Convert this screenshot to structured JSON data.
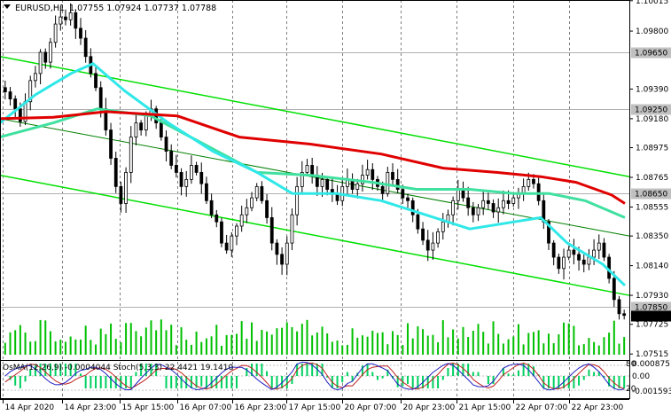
{
  "header": {
    "symbol": "EURUSD,H1",
    "ohlc": "1.07755 1.07924 1.07737 1.07788"
  },
  "oscillator_header": "OsMA(12,26,9) -0.0004044  Stoch(5,3,3) 22.4421 19.1410",
  "colors": {
    "bull_candle": "#000000",
    "bear_candle": "#000000",
    "channel": "#00e000",
    "ema_red": "#e00000",
    "ema_cyan": "#30e8e8",
    "ema_green": "#40e0a0",
    "volume": "#00c000",
    "osma": "#00d060",
    "stoch_main": "#2020c0",
    "stoch_signal": "#c02020",
    "price_tag": "#c0c0c0",
    "current_tag": "#000000"
  },
  "chart_data": {
    "type": "candlestick",
    "ylim": [
      1.0751,
      1.1002
    ],
    "y_ticks": [
      "1.10015",
      "1.09800",
      "1.09390",
      "1.09180",
      "1.08975",
      "1.08765",
      "1.08555",
      "1.08350",
      "1.08140",
      "1.07930",
      "1.07725",
      "1.07515"
    ],
    "level_tags": [
      "1.09650",
      "1.09250",
      "1.08650",
      "1.07850"
    ],
    "current_price": "1.07788",
    "x_labels": [
      "14 Apr 2020",
      "14 Apr 23:00",
      "15 Apr 15:00",
      "16 Apr 07:00",
      "16 Apr 23:00",
      "17 Apr 15:00",
      "20 Apr 07:00",
      "20 Apr 23:00",
      "21 Apr 15:00",
      "22 Apr 07:00",
      "22 Apr 23:00"
    ],
    "osc_ticks": [
      "0.0008751",
      "0.00",
      "-0.001593"
    ],
    "stoch_levels": [
      "80",
      "20"
    ],
    "channel": {
      "upper": [
        [
          0,
          1.0962
        ],
        [
          710,
          1.0877
        ]
      ],
      "middle": [
        [
          0,
          1.0918
        ],
        [
          710,
          1.0835
        ]
      ],
      "lower": [
        [
          0,
          1.0878
        ],
        [
          710,
          1.0793
        ]
      ]
    },
    "candles_close": [
      1.0937,
      1.0932,
      1.0925,
      1.0916,
      1.093,
      1.0945,
      1.095,
      1.0965,
      1.0958,
      1.0972,
      1.0985,
      1.099,
      1.0988,
      1.0993,
      1.0982,
      1.0975,
      1.0962,
      1.095,
      1.094,
      1.0925,
      1.091,
      1.089,
      1.087,
      1.0858,
      1.088,
      1.0905,
      1.0915,
      1.091,
      1.092,
      1.0925,
      1.0915,
      1.0905,
      1.0895,
      1.0885,
      1.088,
      1.087,
      1.0875,
      1.0885,
      1.088,
      1.0872,
      1.086,
      1.085,
      1.0845,
      1.083,
      1.0825,
      1.0835,
      1.0842,
      1.085,
      1.0855,
      1.0862,
      1.087,
      1.086,
      1.0848,
      1.083,
      1.0822,
      1.0815,
      1.083,
      1.085,
      1.087,
      1.088,
      1.0885,
      1.0878,
      1.087,
      1.0875,
      1.0868,
      1.0865,
      1.086,
      1.087,
      1.0875,
      1.0868,
      1.0872,
      1.0878,
      1.0882,
      1.0875,
      1.087,
      1.0865,
      1.088,
      1.0875,
      1.0868,
      1.0862,
      1.086,
      1.085,
      1.084,
      1.0832,
      1.0825,
      1.083,
      1.0838,
      1.0845,
      1.085,
      1.086,
      1.0868,
      1.0862,
      1.0855,
      1.085,
      1.0855,
      1.086,
      1.0858,
      1.0852,
      1.0855,
      1.086,
      1.0858,
      1.0862,
      1.0865,
      1.087,
      1.0875,
      1.0872,
      1.086,
      1.0845,
      1.083,
      1.082,
      1.0812,
      1.082,
      1.0825,
      1.0822,
      1.0818,
      1.0815,
      1.082,
      1.0825,
      1.083,
      1.082,
      1.0805,
      1.079,
      1.078,
      1.07788
    ],
    "ema_red": [
      [
        0,
        1.0918
      ],
      [
        60,
        1.0919
      ],
      [
        120,
        1.0923
      ],
      [
        200,
        1.092
      ],
      [
        270,
        1.0905
      ],
      [
        350,
        1.09
      ],
      [
        430,
        1.0893
      ],
      [
        500,
        1.0883
      ],
      [
        560,
        1.088
      ],
      [
        610,
        1.0877
      ],
      [
        650,
        1.0873
      ],
      [
        690,
        1.0864
      ],
      [
        705,
        1.0858
      ]
    ],
    "ema_green": [
      [
        0,
        1.0905
      ],
      [
        60,
        1.0915
      ],
      [
        110,
        1.0925
      ],
      [
        170,
        1.092
      ],
      [
        230,
        1.09
      ],
      [
        290,
        1.088
      ],
      [
        350,
        1.0878
      ],
      [
        420,
        1.0873
      ],
      [
        470,
        1.0868
      ],
      [
        530,
        1.0868
      ],
      [
        580,
        1.0865
      ],
      [
        620,
        1.0865
      ],
      [
        660,
        1.086
      ],
      [
        705,
        1.0848
      ]
    ],
    "ema_cyan": [
      [
        0,
        1.0915
      ],
      [
        40,
        1.0935
      ],
      [
        80,
        1.095
      ],
      [
        105,
        1.0957
      ],
      [
        140,
        1.0938
      ],
      [
        190,
        1.0915
      ],
      [
        240,
        1.0895
      ],
      [
        290,
        1.088
      ],
      [
        330,
        1.0865
      ],
      [
        380,
        1.0865
      ],
      [
        430,
        1.086
      ],
      [
        480,
        1.085
      ],
      [
        530,
        1.084
      ],
      [
        580,
        1.0845
      ],
      [
        610,
        1.0848
      ],
      [
        640,
        1.083
      ],
      [
        680,
        1.0815
      ],
      [
        705,
        1.08
      ]
    ]
  }
}
